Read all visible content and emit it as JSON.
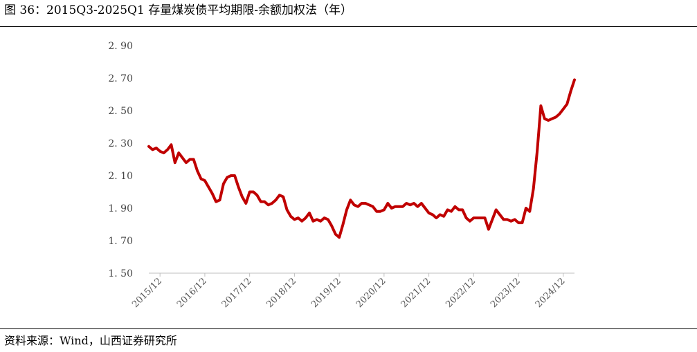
{
  "figure": {
    "title": "图 36：2015Q3-2025Q1 存量煤炭债平均期限-余额加权法（年）",
    "source": "资料来源：Wind，山西证券研究所"
  },
  "chart_data": {
    "type": "line",
    "title": "图 36：2015Q3-2025Q1 存量煤炭债平均期限-余额加权法（年）",
    "xlabel": "",
    "ylabel": "",
    "ylim": [
      1.5,
      2.9
    ],
    "yticks": [
      "1.50",
      "1.70",
      "1.90",
      "2.10",
      "2.30",
      "2.50",
      "2.70",
      "2.90"
    ],
    "xticks": [
      "2015/12",
      "2016/12",
      "2017/12",
      "2018/12",
      "2019/12",
      "2020/12",
      "2021/12",
      "2022/12",
      "2023/12",
      "2024/12"
    ],
    "xlim": [
      "2015-09",
      "2025-03"
    ],
    "grid": false,
    "legend": "none",
    "color": "#C00000",
    "series": [
      {
        "x": [
          "2015-09",
          "2015-10",
          "2015-11",
          "2015-12",
          "2016-01",
          "2016-02",
          "2016-03",
          "2016-04",
          "2016-05",
          "2016-06",
          "2016-07",
          "2016-08",
          "2016-09",
          "2016-10",
          "2016-11",
          "2016-12",
          "2017-01",
          "2017-02",
          "2017-03",
          "2017-04",
          "2017-05",
          "2017-06",
          "2017-07",
          "2017-08",
          "2017-09",
          "2017-10",
          "2017-11",
          "2017-12",
          "2018-01",
          "2018-02",
          "2018-03",
          "2018-04",
          "2018-05",
          "2018-06",
          "2018-07",
          "2018-08",
          "2018-09",
          "2018-10",
          "2018-11",
          "2018-12",
          "2019-01",
          "2019-02",
          "2019-03",
          "2019-04",
          "2019-05",
          "2019-06",
          "2019-07",
          "2019-08",
          "2019-09",
          "2019-10",
          "2019-11",
          "2019-12",
          "2020-01",
          "2020-02",
          "2020-03",
          "2020-04",
          "2020-05",
          "2020-06",
          "2020-07",
          "2020-08",
          "2020-09",
          "2020-10",
          "2020-11",
          "2020-12",
          "2021-01",
          "2021-02",
          "2021-03",
          "2021-04",
          "2021-05",
          "2021-06",
          "2021-07",
          "2021-08",
          "2021-09",
          "2021-10",
          "2021-11",
          "2021-12",
          "2022-01",
          "2022-02",
          "2022-03",
          "2022-04",
          "2022-05",
          "2022-06",
          "2022-07",
          "2022-08",
          "2022-09",
          "2022-10",
          "2022-11",
          "2022-12",
          "2023-01",
          "2023-02",
          "2023-03",
          "2023-04",
          "2023-05",
          "2023-06",
          "2023-07",
          "2023-08",
          "2023-09",
          "2023-10",
          "2023-11",
          "2023-12",
          "2024-01",
          "2024-02",
          "2024-03",
          "2024-04",
          "2024-05",
          "2024-06",
          "2024-07",
          "2024-08",
          "2024-09",
          "2024-10",
          "2024-11",
          "2024-12",
          "2025-01",
          "2025-02",
          "2025-03"
        ],
        "y": [
          2.28,
          2.26,
          2.27,
          2.25,
          2.24,
          2.26,
          2.29,
          2.18,
          2.24,
          2.21,
          2.18,
          2.2,
          2.2,
          2.13,
          2.08,
          2.07,
          2.03,
          1.99,
          1.94,
          1.95,
          2.05,
          2.09,
          2.1,
          2.1,
          2.03,
          1.97,
          1.93,
          2.0,
          2.0,
          1.98,
          1.94,
          1.94,
          1.92,
          1.93,
          1.95,
          1.98,
          1.97,
          1.89,
          1.85,
          1.83,
          1.84,
          1.82,
          1.84,
          1.87,
          1.82,
          1.83,
          1.82,
          1.84,
          1.83,
          1.79,
          1.74,
          1.72,
          1.8,
          1.89,
          1.95,
          1.92,
          1.91,
          1.93,
          1.93,
          1.92,
          1.91,
          1.88,
          1.88,
          1.89,
          1.93,
          1.9,
          1.91,
          1.91,
          1.91,
          1.93,
          1.92,
          1.93,
          1.91,
          1.93,
          1.9,
          1.87,
          1.86,
          1.84,
          1.86,
          1.85,
          1.89,
          1.88,
          1.91,
          1.89,
          1.89,
          1.84,
          1.82,
          1.84,
          1.84,
          1.84,
          1.84,
          1.77,
          1.83,
          1.89,
          1.86,
          1.83,
          1.83,
          1.82,
          1.83,
          1.81,
          1.81,
          1.9,
          1.88,
          2.02,
          2.25,
          2.53,
          2.45,
          2.44,
          2.45,
          2.46,
          2.48,
          2.51,
          2.54,
          2.62,
          2.69
        ]
      }
    ]
  }
}
